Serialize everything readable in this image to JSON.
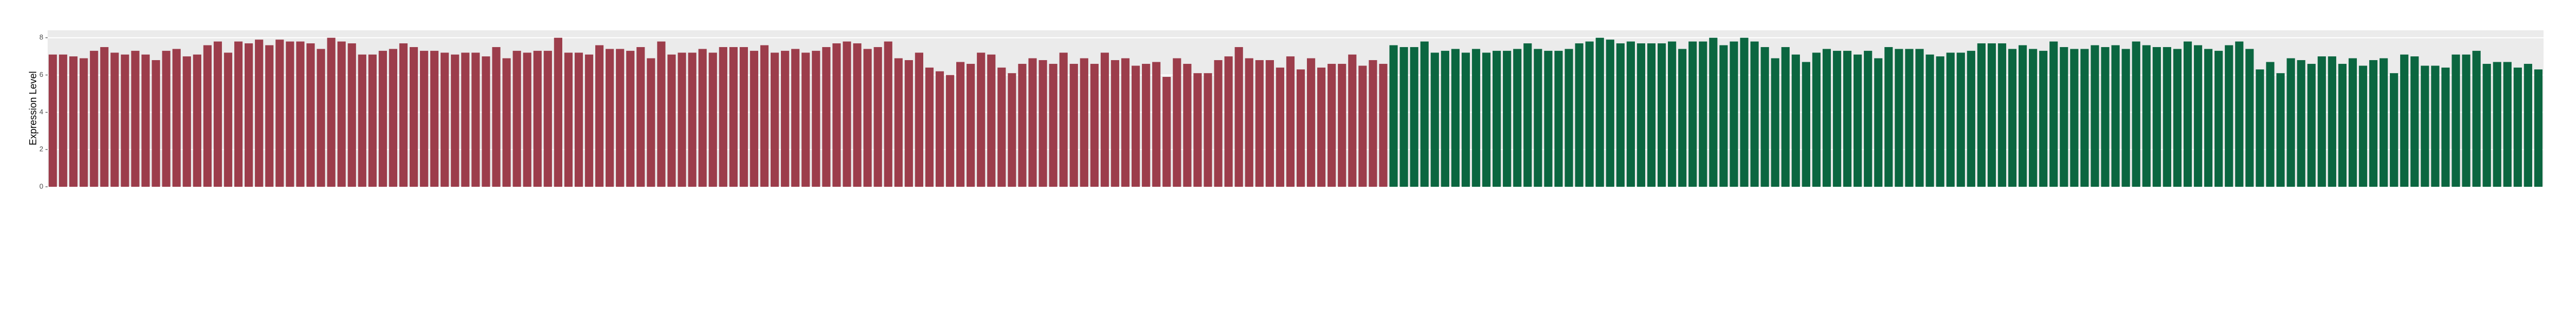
{
  "chart_data": {
    "type": "bar",
    "ylabel": "Expression Level",
    "ylim": [
      0,
      8.4
    ],
    "yticks": [
      0,
      2,
      4,
      6,
      8
    ],
    "grid": true,
    "series": [
      {
        "color": "#9c3d4b",
        "values": [
          7.1,
          7.1,
          7.0,
          6.9,
          7.3,
          7.5,
          7.2,
          7.1,
          7.3,
          7.1,
          6.8,
          7.3,
          7.4,
          7.0,
          7.1,
          7.6,
          7.8,
          7.2,
          7.8,
          7.7,
          7.9,
          7.6,
          7.9,
          7.8,
          7.8,
          7.7,
          7.4,
          8.0,
          7.8,
          7.7,
          7.1,
          7.1,
          7.3,
          7.4,
          7.7,
          7.5,
          7.3,
          7.3,
          7.2,
          7.1,
          7.2,
          7.2,
          7.0,
          7.5,
          6.9,
          7.3,
          7.2,
          7.3,
          7.3,
          8.0,
          7.2,
          7.2,
          7.1,
          7.6,
          7.4,
          7.4,
          7.3,
          7.5,
          6.9,
          7.8,
          7.1,
          7.2,
          7.2,
          7.4,
          7.2,
          7.5,
          7.5,
          7.5,
          7.3,
          7.6,
          7.2,
          7.3,
          7.4,
          7.2,
          7.3,
          7.5,
          7.7,
          7.8,
          7.7,
          7.4,
          7.5,
          7.8,
          6.9,
          6.8,
          7.2,
          6.4,
          6.2,
          6.0,
          6.7,
          6.6,
          7.2,
          7.1,
          6.4,
          6.1,
          6.6,
          6.9,
          6.8,
          6.6,
          7.2,
          6.6,
          6.9,
          6.6,
          7.2,
          6.8,
          6.9,
          6.5,
          6.6,
          6.7,
          5.9,
          6.9,
          6.6,
          6.1,
          6.1,
          6.8,
          7.0,
          7.5,
          6.9,
          6.8,
          6.8,
          6.4,
          7.0,
          6.3,
          6.9,
          6.4,
          6.6,
          6.6,
          7.1,
          6.5,
          6.8,
          6.6
        ]
      },
      {
        "color": "#0b6640",
        "values": [
          7.6,
          7.5,
          7.5,
          7.8,
          7.2,
          7.3,
          7.4,
          7.2,
          7.4,
          7.2,
          7.3,
          7.3,
          7.4,
          7.7,
          7.4,
          7.3,
          7.3,
          7.4,
          7.7,
          7.8,
          8.0,
          7.9,
          7.7,
          7.8,
          7.7,
          7.7,
          7.7,
          7.8,
          7.4,
          7.8,
          7.8,
          8.0,
          7.6,
          7.8,
          8.0,
          7.8,
          7.5,
          6.9,
          7.5,
          7.1,
          6.7,
          7.2,
          7.4,
          7.3,
          7.3,
          7.1,
          7.3,
          6.9,
          7.5,
          7.4,
          7.4,
          7.4,
          7.1,
          7.0,
          7.2,
          7.2,
          7.3,
          7.7,
          7.7,
          7.7,
          7.4,
          7.6,
          7.4,
          7.3,
          7.8,
          7.5,
          7.4,
          7.4,
          7.6,
          7.5,
          7.6,
          7.4,
          7.8,
          7.6,
          7.5,
          7.5,
          7.4,
          7.8,
          7.6,
          7.4,
          7.3,
          7.6,
          7.8,
          7.4,
          6.3,
          6.7,
          6.1,
          6.9,
          6.8,
          6.6,
          7.0,
          7.0,
          6.6,
          6.9,
          6.5,
          6.8,
          6.9,
          6.1,
          7.1,
          7.0,
          6.5,
          6.5,
          6.4,
          7.1,
          7.1,
          7.3,
          6.6,
          6.7,
          6.7,
          6.4,
          6.6,
          6.3
        ]
      }
    ]
  }
}
